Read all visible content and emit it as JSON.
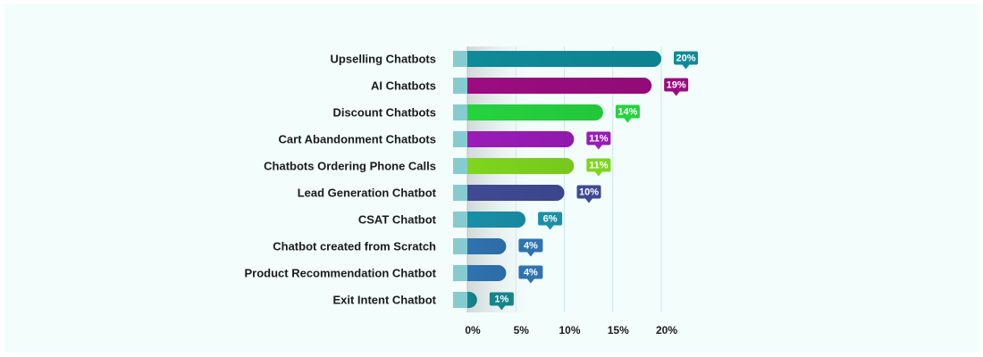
{
  "chart_data": {
    "type": "bar",
    "orientation": "horizontal",
    "categories": [
      "Upselling Chatbots",
      "AI Chatbots",
      "Discount Chatbots",
      "Cart Abandonment Chatbots",
      "Chatbots Ordering Phone Calls",
      "Lead Generation Chatbot",
      "CSAT Chatbot",
      "Chatbot created from Scratch",
      "Product Recommendation Chatbot",
      "Exit Intent Chatbot"
    ],
    "values": [
      20,
      19,
      14,
      11,
      11,
      10,
      6,
      4,
      4,
      1
    ],
    "data_labels": [
      "20%",
      "19%",
      "14%",
      "11%",
      "11%",
      "10%",
      "6%",
      "4%",
      "4%",
      "1%"
    ],
    "colors": [
      "#0e8a99",
      "#9b0c80",
      "#25d33e",
      "#9a1bb8",
      "#7fd51f",
      "#3f4a93",
      "#1a8fa8",
      "#2f73b0",
      "#2f73b0",
      "#15858c"
    ],
    "xlim": [
      0,
      20
    ],
    "xticks": [
      0,
      5,
      10,
      15,
      20
    ],
    "xtick_labels": [
      "0%",
      "5%",
      "10%",
      "15%",
      "20%"
    ],
    "grid": true,
    "title": "",
    "xlabel": "",
    "ylabel": ""
  }
}
